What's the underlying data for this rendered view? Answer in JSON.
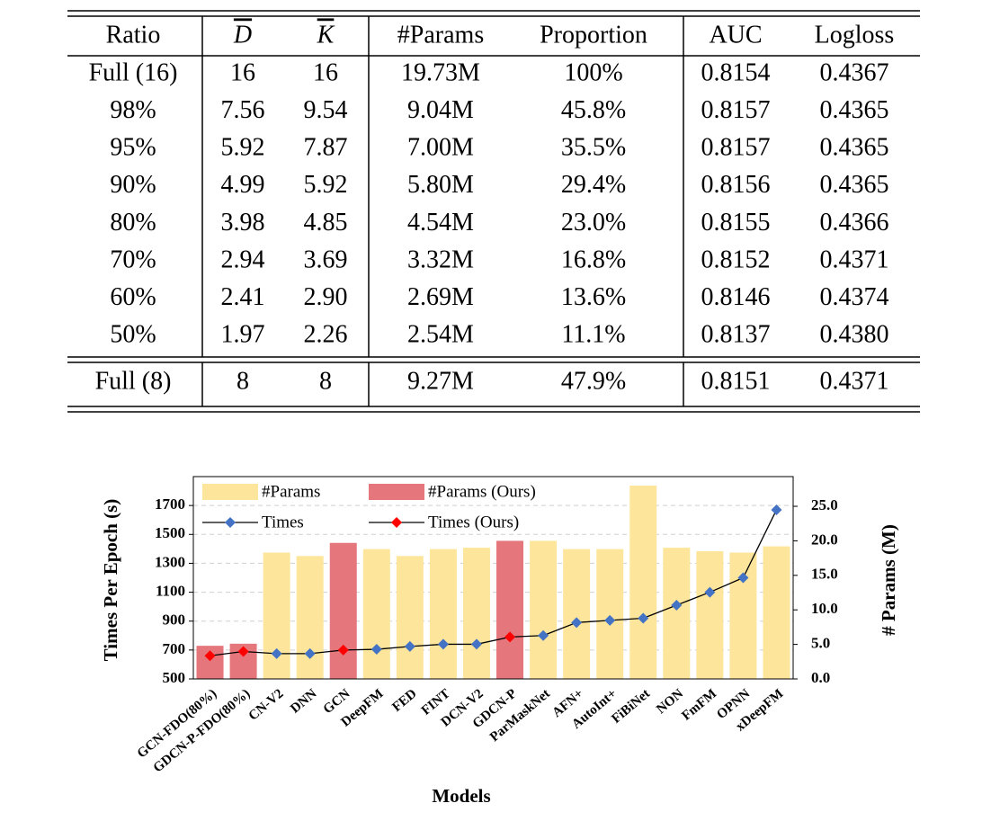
{
  "table": {
    "header": [
      "Ratio",
      "D",
      "K",
      "#Params",
      "Proportion",
      "AUC",
      "Logloss"
    ],
    "body": [
      [
        "Full (16)",
        "16",
        "16",
        "19.73M",
        "100%",
        "0.8154",
        "0.4367"
      ],
      [
        "98%",
        "7.56",
        "9.54",
        "9.04M",
        "45.8%",
        "0.8157",
        "0.4365"
      ],
      [
        "95%",
        "5.92",
        "7.87",
        "7.00M",
        "35.5%",
        "0.8157",
        "0.4365"
      ],
      [
        "90%",
        "4.99",
        "5.92",
        "5.80M",
        "29.4%",
        "0.8156",
        "0.4365"
      ],
      [
        "80%",
        "3.98",
        "4.85",
        "4.54M",
        "23.0%",
        "0.8155",
        "0.4366"
      ],
      [
        "70%",
        "2.94",
        "3.69",
        "3.32M",
        "16.8%",
        "0.8152",
        "0.4371"
      ],
      [
        "60%",
        "2.41",
        "2.90",
        "2.69M",
        "13.6%",
        "0.8146",
        "0.4374"
      ],
      [
        "50%",
        "1.97",
        "2.26",
        "2.54M",
        "11.1%",
        "0.8137",
        "0.4380"
      ]
    ],
    "reference": [
      [
        "Full (8)",
        "8",
        "8",
        "9.27M",
        "47.9%",
        "0.8151",
        "0.4371"
      ]
    ]
  },
  "chart_data": {
    "type": "bar-line",
    "ylabel": "Times Per Epoch (s)",
    "y2label": "# Params (M)",
    "xlabel": "Models",
    "categories": [
      "GCN-FDO(80%)",
      "GDCN-P-FDO(80%)",
      "CN-V2",
      "DNN",
      "GCN",
      "DeepFM",
      "FED",
      "FINT",
      "DCN-V2",
      "GDCN-P",
      "ParMaskNet",
      "AFN+",
      "AutoInt+",
      "FiBiNet",
      "NON",
      "FmFM",
      "OPNN",
      "xDeepFM"
    ],
    "ylim": [
      500,
      1900
    ],
    "yticks": [
      500,
      700,
      900,
      1100,
      1300,
      1500,
      1700
    ],
    "y2lim": [
      0,
      29.3
    ],
    "y2ticks": [
      {
        "value": 0,
        "label": "0.0"
      },
      {
        "value": 5,
        "label": "5.0"
      },
      {
        "value": 10,
        "label": "10.0"
      },
      {
        "value": 15,
        "label": "15.0"
      },
      {
        "value": 20,
        "label": "20.0"
      },
      {
        "value": 25,
        "label": "25.0"
      }
    ],
    "grid": true,
    "series": [
      {
        "name": "#Params",
        "kind": "bar",
        "axis": "y2",
        "color": "#fde69c",
        "values": [
          null,
          null,
          18.3,
          17.8,
          null,
          18.8,
          17.8,
          18.8,
          19.0,
          null,
          20.0,
          18.8,
          18.8,
          28.0,
          19.0,
          18.5,
          18.3,
          19.2
        ]
      },
      {
        "name": "#Params (Ours)",
        "kind": "bar",
        "axis": "y2",
        "color": "#e5767c",
        "values": [
          4.8,
          5.1,
          null,
          null,
          19.7,
          null,
          null,
          null,
          null,
          20.0,
          null,
          null,
          null,
          null,
          null,
          null,
          null,
          null
        ]
      },
      {
        "name": "Times",
        "kind": "line",
        "color": "#4472c4",
        "values": [
          null,
          null,
          675,
          675,
          null,
          705,
          725,
          740,
          740,
          null,
          800,
          890,
          905,
          920,
          1010,
          1100,
          1200,
          1670
        ]
      },
      {
        "name": "Times (Ours)",
        "kind": "line",
        "color": "#ff0000",
        "values": [
          660,
          690,
          null,
          null,
          700,
          null,
          null,
          null,
          null,
          790,
          null,
          null,
          null,
          null,
          null,
          null,
          null,
          null
        ]
      }
    ]
  }
}
